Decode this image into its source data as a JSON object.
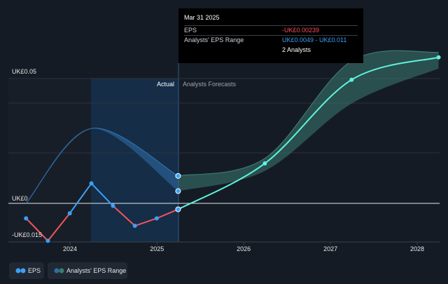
{
  "tooltip": {
    "date": "Mar 31 2025",
    "rows": [
      {
        "label": "EPS",
        "value": "-UK£0.00239"
      },
      {
        "label": "Analysts' EPS Range",
        "value": "UK£0.0049 - UK£0.011"
      },
      {
        "label": "",
        "value": "2 Analysts"
      }
    ]
  },
  "legend": {
    "eps_label": "EPS",
    "range_label": "Analysts' EPS Range"
  },
  "colors": {
    "eps_negative": "#f2545b",
    "eps_positive": "#3aa0f5",
    "forecast": "#5ef2de",
    "range_band_past": "#2f6ea8",
    "range_band_forecast": "#3d7a72",
    "actual_shade": "#163453",
    "background": "#151b24"
  },
  "chart_data": {
    "type": "line",
    "title": "",
    "y_axis_labels": [
      "UK£0.05",
      "UK£0",
      "-UK£0.015"
    ],
    "section_labels": {
      "actual": "Actual",
      "forecast": "Analysts Forecasts"
    },
    "x_ticks": [
      "2024",
      "2025",
      "2026",
      "2027",
      "2028"
    ],
    "ylim": [
      -0.015,
      0.05
    ],
    "series": [
      {
        "name": "EPS",
        "points": [
          {
            "x": "2023-06-30",
            "y": -0.006
          },
          {
            "x": "2023-09-30",
            "y": -0.015
          },
          {
            "x": "2023-12-31",
            "y": -0.004
          },
          {
            "x": "2024-03-31",
            "y": 0.008
          },
          {
            "x": "2024-06-30",
            "y": -0.001
          },
          {
            "x": "2024-09-30",
            "y": -0.009
          },
          {
            "x": "2024-12-31",
            "y": -0.006
          },
          {
            "x": "2025-03-31",
            "y": -0.00239
          }
        ]
      },
      {
        "name": "EPS Forecast",
        "points": [
          {
            "x": "2025-03-31",
            "y": -0.00239
          },
          {
            "x": "2026-03-31",
            "y": 0.016
          },
          {
            "x": "2027-03-31",
            "y": 0.0495
          },
          {
            "x": "2028-03-31",
            "y": 0.0585
          }
        ]
      },
      {
        "name": "Analysts' EPS Range",
        "points": [
          {
            "x": "2023-06-30",
            "low": 0.0,
            "high": 0.0
          },
          {
            "x": "2024-03-31",
            "low": 0.03,
            "high": 0.03
          },
          {
            "x": "2025-03-31",
            "low": 0.0049,
            "high": 0.011
          },
          {
            "x": "2026-03-31",
            "low": 0.013,
            "high": 0.018
          },
          {
            "x": "2027-03-31",
            "low": 0.04,
            "high": 0.057
          },
          {
            "x": "2028-03-31",
            "low": 0.054,
            "high": 0.0605
          }
        ]
      }
    ]
  }
}
